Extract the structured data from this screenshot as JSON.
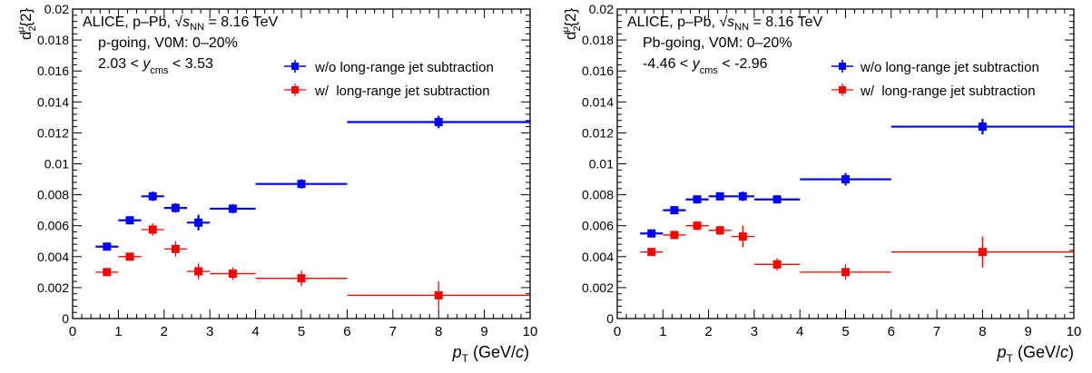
{
  "colors": {
    "series_blue": "#0000ff",
    "series_red": "#ff0000",
    "axis": "#000000"
  },
  "panels": [
    {
      "header": {
        "line1_prefix": "ALICE, p–Pb, ",
        "sqrt": "√",
        "s": "s",
        "nn": "NN",
        "line1_suffix": " = 8.16 TeV",
        "line2": "p-going, V0M: 0–20%",
        "line3_prefix": "2.03 < ",
        "y": "y",
        "cms": "cms",
        "line3_suffix": " < 3.53"
      }
    },
    {
      "header": {
        "line1_prefix": "ALICE, p–Pb, ",
        "sqrt": "√",
        "s": "s",
        "nn": "NN",
        "line1_suffix": " = 8.16 TeV",
        "line2": "Pb-going, V0M: 0–20%",
        "line3_prefix": "-4.46 < ",
        "y": "y",
        "cms": "cms",
        "line3_suffix": " < -2.96"
      }
    }
  ],
  "chart_data": [
    {
      "type": "scatter",
      "xlabel": {
        "p": "p",
        "T": "T",
        "unit": " (GeV/",
        "c": "c",
        "close": ")"
      },
      "ylabel": {
        "d": "d",
        "sub": "2",
        "sup": "μ",
        "rest": "{2}"
      },
      "xlim": [
        0,
        10
      ],
      "ylim": [
        0,
        0.02
      ],
      "x_ticks": [
        "0",
        "1",
        "2",
        "3",
        "4",
        "5",
        "6",
        "7",
        "8",
        "9",
        "10"
      ],
      "y_ticks": [
        "0",
        "0.002",
        "0.004",
        "0.006",
        "0.008",
        "0.01",
        "0.012",
        "0.014",
        "0.016",
        "0.018",
        "0.02"
      ],
      "series": [
        {
          "name": "w/o long-range jet subtraction",
          "color": "#0000ff",
          "points": [
            {
              "x": 0.75,
              "xlo": 0.5,
              "xhi": 1.0,
              "y": 0.00465,
              "yerr": 0.0002
            },
            {
              "x": 1.25,
              "xlo": 1.0,
              "xhi": 1.5,
              "y": 0.00635,
              "yerr": 0.0002
            },
            {
              "x": 1.75,
              "xlo": 1.5,
              "xhi": 2.0,
              "y": 0.0079,
              "yerr": 0.0003
            },
            {
              "x": 2.25,
              "xlo": 2.0,
              "xhi": 2.5,
              "y": 0.00715,
              "yerr": 0.0003
            },
            {
              "x": 2.75,
              "xlo": 2.5,
              "xhi": 3.0,
              "y": 0.0062,
              "yerr": 0.0005
            },
            {
              "x": 3.5,
              "xlo": 3.0,
              "xhi": 4.0,
              "y": 0.0071,
              "yerr": 0.0003
            },
            {
              "x": 5.0,
              "xlo": 4.0,
              "xhi": 6.0,
              "y": 0.0087,
              "yerr": 0.0003
            },
            {
              "x": 8.0,
              "xlo": 6.0,
              "xhi": 10.0,
              "y": 0.0127,
              "yerr": 0.0004
            }
          ]
        },
        {
          "name": "w/  long-range jet subtraction",
          "color": "#ff0000",
          "points": [
            {
              "x": 0.75,
              "xlo": 0.5,
              "xhi": 1.0,
              "y": 0.003,
              "yerr": 0.0002
            },
            {
              "x": 1.25,
              "xlo": 1.0,
              "xhi": 1.5,
              "y": 0.004,
              "yerr": 0.0002
            },
            {
              "x": 1.75,
              "xlo": 1.5,
              "xhi": 2.0,
              "y": 0.00575,
              "yerr": 0.0004
            },
            {
              "x": 2.25,
              "xlo": 2.0,
              "xhi": 2.5,
              "y": 0.0045,
              "yerr": 0.0005
            },
            {
              "x": 2.75,
              "xlo": 2.5,
              "xhi": 3.0,
              "y": 0.00305,
              "yerr": 0.0005
            },
            {
              "x": 3.5,
              "xlo": 3.0,
              "xhi": 4.0,
              "y": 0.0029,
              "yerr": 0.0004
            },
            {
              "x": 5.0,
              "xlo": 4.0,
              "xhi": 6.0,
              "y": 0.0026,
              "yerr": 0.0005
            },
            {
              "x": 8.0,
              "xlo": 6.0,
              "xhi": 10.0,
              "y": 0.0015,
              "yerr": 0.0009
            }
          ]
        }
      ],
      "legend": "top-right"
    },
    {
      "type": "scatter",
      "xlabel": {
        "p": "p",
        "T": "T",
        "unit": " (GeV/",
        "c": "c",
        "close": ")"
      },
      "ylabel": {
        "d": "d",
        "sub": "2",
        "sup": "μ",
        "rest": "{2}"
      },
      "xlim": [
        0,
        10
      ],
      "ylim": [
        0,
        0.02
      ],
      "x_ticks": [
        "0",
        "1",
        "2",
        "3",
        "4",
        "5",
        "6",
        "7",
        "8",
        "9",
        "10"
      ],
      "y_ticks": [
        "0",
        "0.002",
        "0.004",
        "0.006",
        "0.008",
        "0.01",
        "0.012",
        "0.014",
        "0.016",
        "0.018",
        "0.02"
      ],
      "series": [
        {
          "name": "w/o long-range jet subtraction",
          "color": "#0000ff",
          "points": [
            {
              "x": 0.75,
              "xlo": 0.5,
              "xhi": 1.0,
              "y": 0.0055,
              "yerr": 0.0002
            },
            {
              "x": 1.25,
              "xlo": 1.0,
              "xhi": 1.5,
              "y": 0.007,
              "yerr": 0.0002
            },
            {
              "x": 1.75,
              "xlo": 1.5,
              "xhi": 2.0,
              "y": 0.0077,
              "yerr": 0.0002
            },
            {
              "x": 2.25,
              "xlo": 2.0,
              "xhi": 2.5,
              "y": 0.0079,
              "yerr": 0.0002
            },
            {
              "x": 2.75,
              "xlo": 2.5,
              "xhi": 3.0,
              "y": 0.0079,
              "yerr": 0.0003
            },
            {
              "x": 3.5,
              "xlo": 3.0,
              "xhi": 4.0,
              "y": 0.0077,
              "yerr": 0.0002
            },
            {
              "x": 5.0,
              "xlo": 4.0,
              "xhi": 6.0,
              "y": 0.009,
              "yerr": 0.0004
            },
            {
              "x": 8.0,
              "xlo": 6.0,
              "xhi": 10.0,
              "y": 0.0124,
              "yerr": 0.0005
            }
          ]
        },
        {
          "name": "w/  long-range jet subtraction",
          "color": "#ff0000",
          "points": [
            {
              "x": 0.75,
              "xlo": 0.5,
              "xhi": 1.0,
              "y": 0.0043,
              "yerr": 0.0002
            },
            {
              "x": 1.25,
              "xlo": 1.0,
              "xhi": 1.5,
              "y": 0.0054,
              "yerr": 0.0002
            },
            {
              "x": 1.75,
              "xlo": 1.5,
              "xhi": 2.0,
              "y": 0.006,
              "yerr": 0.0003
            },
            {
              "x": 2.25,
              "xlo": 2.0,
              "xhi": 2.5,
              "y": 0.0057,
              "yerr": 0.0003
            },
            {
              "x": 2.75,
              "xlo": 2.5,
              "xhi": 3.0,
              "y": 0.0053,
              "yerr": 0.0007
            },
            {
              "x": 3.5,
              "xlo": 3.0,
              "xhi": 4.0,
              "y": 0.0035,
              "yerr": 0.0004
            },
            {
              "x": 5.0,
              "xlo": 4.0,
              "xhi": 6.0,
              "y": 0.003,
              "yerr": 0.0005
            },
            {
              "x": 8.0,
              "xlo": 6.0,
              "xhi": 10.0,
              "y": 0.0043,
              "yerr": 0.001
            }
          ]
        }
      ],
      "legend": "top-right"
    }
  ]
}
